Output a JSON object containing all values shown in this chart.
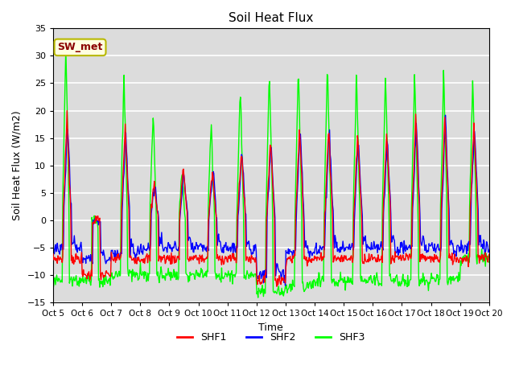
{
  "title": "Soil Heat Flux",
  "ylabel": "Soil Heat Flux (W/m2)",
  "xlabel": "Time",
  "ylim": [
    -15,
    35
  ],
  "annotation_text": "SW_met",
  "legend": [
    "SHF1",
    "SHF2",
    "SHF3"
  ],
  "colors": [
    "red",
    "blue",
    "lime"
  ],
  "x_tick_labels": [
    "Oct 5",
    "Oct 6",
    "Oct 7",
    "Oct 8",
    "Oct 9",
    "Oct 10",
    "Oct 11",
    "Oct 12",
    "Oct 13",
    "Oct 14",
    "Oct 15",
    "Oct 16",
    "Oct 17",
    "Oct 18",
    "Oct 19",
    "Oct 20"
  ],
  "background_color": "#dcdcdc",
  "grid_color": "white",
  "yticks": [
    -15,
    -10,
    -5,
    0,
    5,
    10,
    15,
    20,
    25,
    30,
    35
  ],
  "n_days": 15,
  "points_per_day": 48
}
